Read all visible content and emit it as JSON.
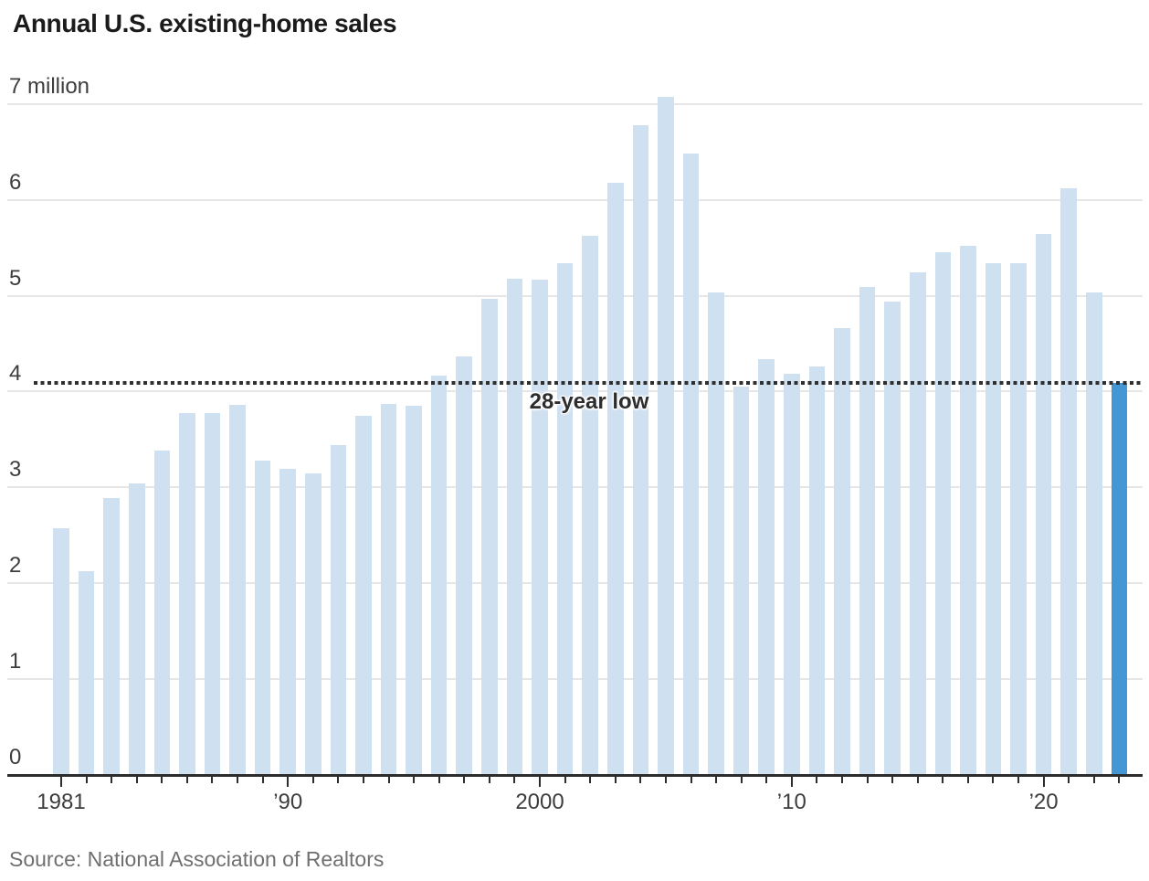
{
  "chart_data": {
    "type": "bar",
    "title": "Annual U.S. existing-home sales",
    "source": "Source: National Association of Realtors",
    "ylabel": "million",
    "ylim": [
      0,
      7
    ],
    "grid": true,
    "yticks": [
      {
        "value": 7,
        "label": "7 million"
      },
      {
        "value": 6,
        "label": "6"
      },
      {
        "value": 5,
        "label": "5"
      },
      {
        "value": 4,
        "label": "4"
      },
      {
        "value": 3,
        "label": "3"
      },
      {
        "value": 2,
        "label": "2"
      },
      {
        "value": 1,
        "label": "1"
      },
      {
        "value": 0,
        "label": "0"
      }
    ],
    "xticks": [
      {
        "year": 1981,
        "label": "1981"
      },
      {
        "year": 1990,
        "label": "’90"
      },
      {
        "year": 2000,
        "label": "2000"
      },
      {
        "year": 2010,
        "label": "’10"
      },
      {
        "year": 2020,
        "label": "’20"
      }
    ],
    "years": [
      1981,
      1982,
      1983,
      1984,
      1985,
      1986,
      1987,
      1988,
      1989,
      1990,
      1991,
      1992,
      1993,
      1994,
      1995,
      1996,
      1997,
      1998,
      1999,
      2000,
      2001,
      2002,
      2003,
      2004,
      2005,
      2006,
      2007,
      2008,
      2009,
      2010,
      2011,
      2012,
      2013,
      2014,
      2015,
      2016,
      2017,
      2018,
      2019,
      2020,
      2021,
      2022,
      2023
    ],
    "values": [
      2.57,
      2.12,
      2.89,
      3.04,
      3.38,
      3.78,
      3.78,
      3.86,
      3.28,
      3.19,
      3.15,
      3.44,
      3.75,
      3.87,
      3.85,
      4.17,
      4.37,
      4.97,
      5.18,
      5.17,
      5.34,
      5.63,
      6.18,
      6.78,
      7.08,
      6.49,
      5.04,
      4.05,
      4.34,
      4.19,
      4.26,
      4.66,
      5.09,
      4.94,
      5.25,
      5.46,
      5.52,
      5.34,
      5.34,
      5.65,
      6.12,
      5.04,
      4.09
    ],
    "highlight_year": 2023,
    "reference_line": {
      "value": 4.09,
      "label": "28-year low"
    },
    "colors": {
      "bar": "#cfe0f1",
      "highlight_bar": "#4297d4",
      "reference_line": "#2f2f2f",
      "gridline": "#e6e6e6",
      "axis": "#2d2d2d"
    }
  }
}
